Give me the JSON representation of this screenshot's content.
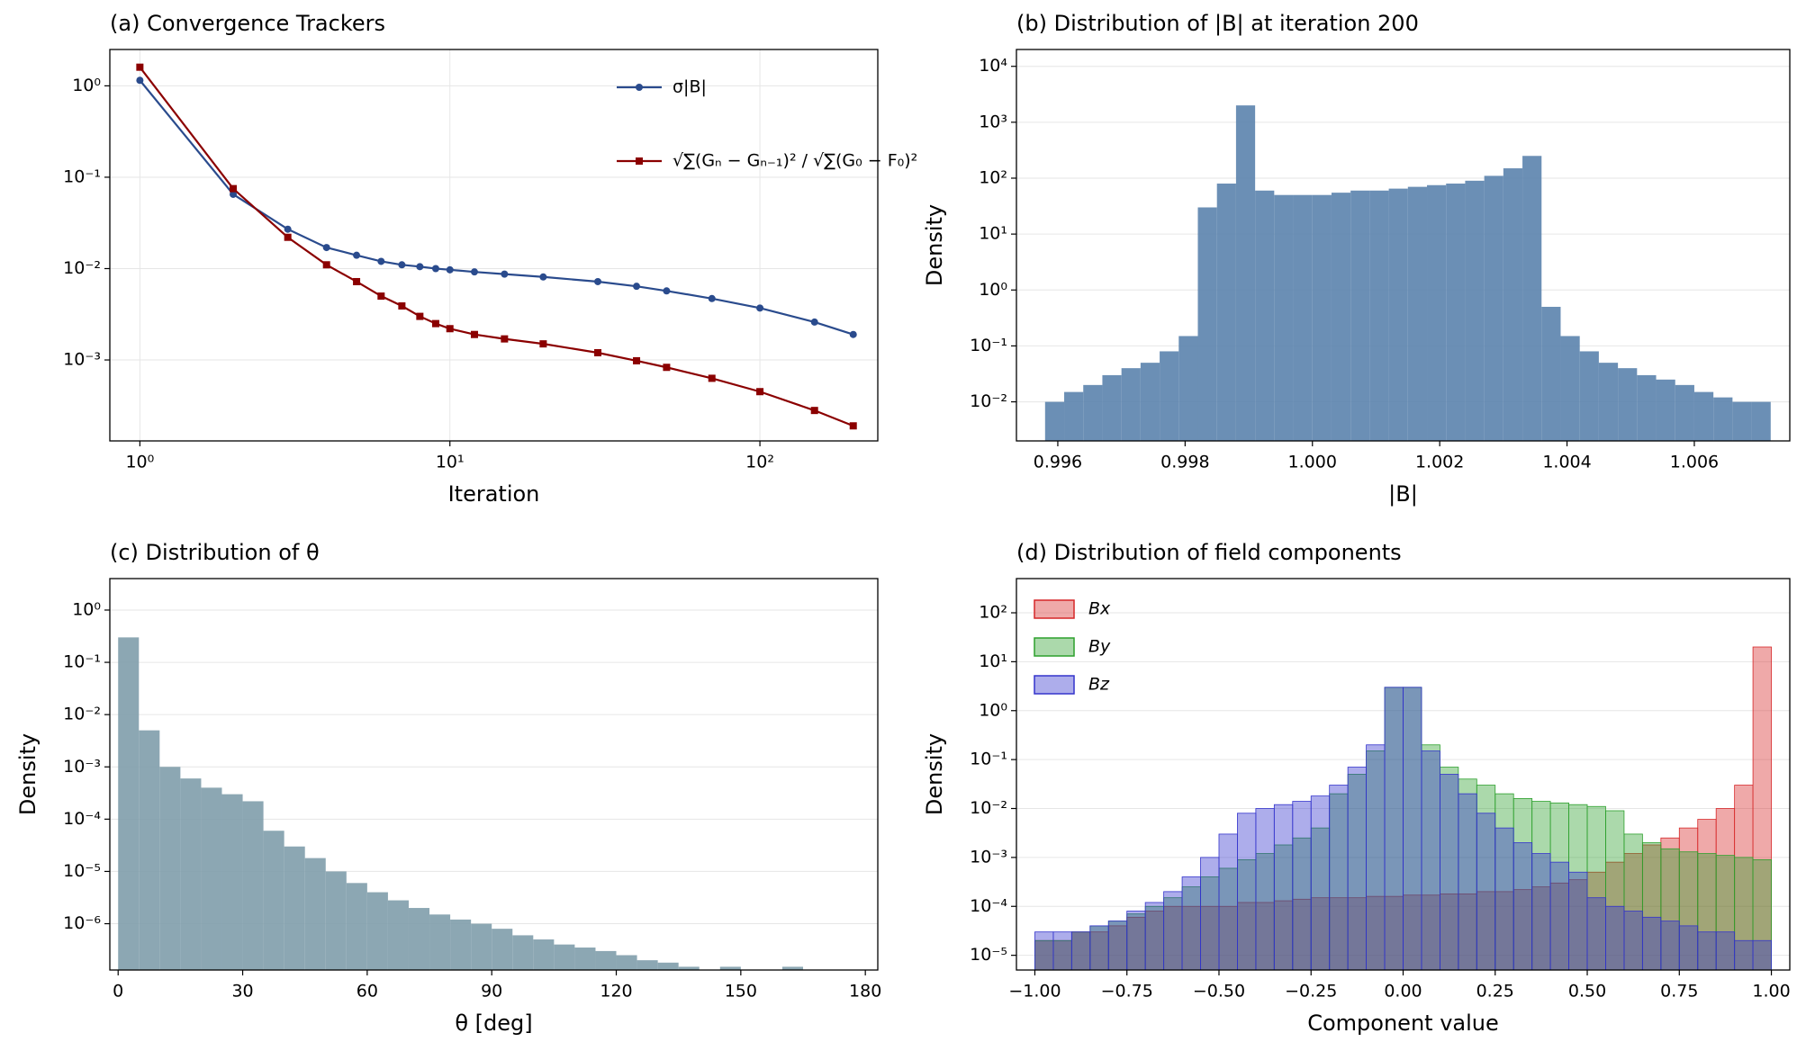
{
  "chart_data": [
    {
      "type": "line",
      "title": "(a) Convergence Trackers",
      "xlabel": "Iteration",
      "xscale": "log",
      "yscale": "log",
      "grid": true,
      "legend": "upper right",
      "x": [
        1,
        2,
        3,
        4,
        5,
        6,
        7,
        8,
        9,
        10,
        12,
        15,
        20,
        30,
        40,
        50,
        70,
        100,
        150,
        200
      ],
      "series": [
        {
          "name": "σ|B|",
          "color": "#2a4b8d",
          "marker": "circle",
          "values": [
            1.15,
            0.065,
            0.027,
            0.017,
            0.014,
            0.012,
            0.011,
            0.0105,
            0.01,
            0.0097,
            0.0092,
            0.0087,
            0.0081,
            0.0072,
            0.0064,
            0.0057,
            0.0047,
            0.0037,
            0.0026,
            0.0019
          ]
        },
        {
          "name": "√∑(Gₙ − Gₙ₋₁)² / √∑(G₀ − F₀)²",
          "color": "#8b0000",
          "marker": "square",
          "values": [
            1.6,
            0.075,
            0.022,
            0.011,
            0.0072,
            0.005,
            0.0039,
            0.003,
            0.0025,
            0.0022,
            0.0019,
            0.0017,
            0.0015,
            0.0012,
            0.00098,
            0.00083,
            0.00063,
            0.00045,
            0.00028,
            0.00019
          ]
        }
      ],
      "xlim": [
        0.8,
        240
      ],
      "xticks": [
        {
          "value": 1,
          "label": "10⁰"
        },
        {
          "value": 10,
          "label": "10¹"
        },
        {
          "value": 100,
          "label": "10²"
        }
      ],
      "ylim": [
        0.00013,
        2.5
      ],
      "yticks": [
        {
          "value": 0.001,
          "label": "10⁻³"
        },
        {
          "value": 0.01,
          "label": "10⁻²"
        },
        {
          "value": 0.1,
          "label": "10⁻¹"
        },
        {
          "value": 1,
          "label": "10⁰"
        }
      ]
    },
    {
      "type": "histogram",
      "title": "(b) Distribution of |B| at iteration 200",
      "xlabel": "|B|",
      "ylabel": "Density",
      "yscale": "log",
      "grid": true,
      "color": "#5b83ad",
      "alpha": 0.9,
      "bins": [
        0.9958,
        0.9961,
        0.9964,
        0.9967,
        0.997,
        0.9973,
        0.9976,
        0.9979,
        0.9982,
        0.9985,
        0.9988,
        0.9991,
        0.9994,
        0.9997,
        1.0,
        1.0003,
        1.0006,
        1.0009,
        1.0012,
        1.0015,
        1.0018,
        1.0021,
        1.0024,
        1.0027,
        1.003,
        1.0033,
        1.0036,
        1.0039,
        1.0042,
        1.0045,
        1.0048,
        1.0051,
        1.0054,
        1.0057,
        1.006,
        1.0063,
        1.0066,
        1.0069,
        1.0072
      ],
      "values": [
        0.01,
        0.015,
        0.02,
        0.03,
        0.04,
        0.05,
        0.08,
        0.15,
        30,
        80,
        2000,
        60,
        50,
        50,
        50,
        55,
        60,
        60,
        65,
        70,
        75,
        80,
        90,
        110,
        150,
        250,
        0.5,
        0.15,
        0.08,
        0.05,
        0.04,
        0.03,
        0.025,
        0.02,
        0.015,
        0.012,
        0.01,
        0.01
      ],
      "xlim": [
        0.99535,
        1.0075
      ],
      "xticks": [
        {
          "value": 0.996,
          "label": "0.996"
        },
        {
          "value": 0.998,
          "label": "0.998"
        },
        {
          "value": 1.0,
          "label": "1.000"
        },
        {
          "value": 1.002,
          "label": "1.002"
        },
        {
          "value": 1.004,
          "label": "1.004"
        },
        {
          "value": 1.006,
          "label": "1.006"
        }
      ],
      "ylim": [
        0.002,
        20000
      ],
      "yticks": [
        {
          "value": 0.01,
          "label": "10⁻²"
        },
        {
          "value": 0.1,
          "label": "10⁻¹"
        },
        {
          "value": 1,
          "label": "10⁰"
        },
        {
          "value": 10,
          "label": "10¹"
        },
        {
          "value": 100,
          "label": "10²"
        },
        {
          "value": 1000,
          "label": "10³"
        },
        {
          "value": 10000,
          "label": "10⁴"
        }
      ]
    },
    {
      "type": "histogram",
      "title": "(c) Distribution of θ",
      "xlabel": "θ [deg]",
      "ylabel": "Density",
      "yscale": "log",
      "grid": true,
      "color": "#7f9dab",
      "alpha": 0.9,
      "bins": [
        0,
        5,
        10,
        15,
        20,
        25,
        30,
        35,
        40,
        45,
        50,
        55,
        60,
        65,
        70,
        75,
        80,
        85,
        90,
        95,
        100,
        105,
        110,
        115,
        120,
        125,
        130,
        135,
        140,
        145,
        150,
        155,
        160,
        165,
        170,
        175
      ],
      "values": [
        0.3,
        0.005,
        0.001,
        0.0006,
        0.0004,
        0.0003,
        0.00022,
        6e-05,
        3e-05,
        1.8e-05,
        1e-05,
        6e-06,
        4e-06,
        2.8e-06,
        2e-06,
        1.5e-06,
        1.2e-06,
        1e-06,
        8e-07,
        6e-07,
        5e-07,
        4e-07,
        3.5e-07,
        3e-07,
        2.5e-07,
        2e-07,
        1.8e-07,
        1.5e-07,
        0,
        1.5e-07,
        0,
        0,
        1.5e-07,
        0,
        0
      ],
      "xlim": [
        -2,
        183
      ],
      "xticks": [
        0,
        30,
        60,
        90,
        120,
        150,
        180
      ],
      "ylim": [
        1.3e-07,
        4
      ],
      "yticks": [
        {
          "value": 1e-06,
          "label": "10⁻⁶"
        },
        {
          "value": 1e-05,
          "label": "10⁻⁵"
        },
        {
          "value": 0.0001,
          "label": "10⁻⁴"
        },
        {
          "value": 0.001,
          "label": "10⁻³"
        },
        {
          "value": 0.01,
          "label": "10⁻²"
        },
        {
          "value": 0.1,
          "label": "10⁻¹"
        },
        {
          "value": 1,
          "label": "10⁰"
        }
      ]
    },
    {
      "type": "histogram",
      "title": "(d) Distribution of field components",
      "xlabel": "Component value",
      "ylabel": "Density",
      "yscale": "log",
      "grid": true,
      "alpha": 0.4,
      "legend": "upper left",
      "bins": [
        -1,
        -0.95,
        -0.9,
        -0.85,
        -0.8,
        -0.75,
        -0.7,
        -0.65,
        -0.6,
        -0.55,
        -0.5,
        -0.45,
        -0.4,
        -0.35,
        -0.3,
        -0.25,
        -0.2,
        -0.15,
        -0.1,
        -0.05,
        0,
        0.05,
        0.1,
        0.15,
        0.2,
        0.25,
        0.3,
        0.35,
        0.4,
        0.45,
        0.5,
        0.55,
        0.6,
        0.65,
        0.7,
        0.75,
        0.8,
        0.85,
        0.9,
        0.95,
        1
      ],
      "series": [
        {
          "name": "Bx",
          "color": "#d62728",
          "values": [
            2e-05,
            2e-05,
            3e-05,
            3e-05,
            4e-05,
            6e-05,
            8e-05,
            0.0001,
            0.0001,
            0.0001,
            0.0001,
            0.00012,
            0.00012,
            0.00013,
            0.00014,
            0.00015,
            0.00015,
            0.00015,
            0.00016,
            0.00016,
            0.00017,
            0.00017,
            0.00018,
            0.00018,
            0.0002,
            0.0002,
            0.00022,
            0.00025,
            0.0003,
            0.00035,
            0.0005,
            0.0008,
            0.0012,
            0.0018,
            0.0025,
            0.004,
            0.006,
            0.01,
            0.03,
            20
          ]
        },
        {
          "name": "By",
          "color": "#2ca02c",
          "values": [
            2e-05,
            2e-05,
            3e-05,
            4e-05,
            5e-05,
            7e-05,
            0.0001,
            0.00015,
            0.00025,
            0.0004,
            0.0006,
            0.0009,
            0.0012,
            0.0018,
            0.0025,
            0.004,
            0.02,
            0.05,
            0.15,
            3,
            3,
            0.2,
            0.07,
            0.04,
            0.03,
            0.02,
            0.016,
            0.014,
            0.013,
            0.012,
            0.011,
            0.009,
            0.003,
            0.002,
            0.0015,
            0.0013,
            0.0012,
            0.0011,
            0.001,
            0.0009
          ]
        },
        {
          "name": "Bz",
          "color": "#3333cc",
          "values": [
            3e-05,
            3e-05,
            3e-05,
            4e-05,
            5e-05,
            8e-05,
            0.00012,
            0.0002,
            0.0004,
            0.001,
            0.003,
            0.008,
            0.01,
            0.012,
            0.014,
            0.018,
            0.03,
            0.07,
            0.2,
            3,
            3,
            0.15,
            0.05,
            0.02,
            0.008,
            0.004,
            0.002,
            0.0012,
            0.0008,
            0.0005,
            0.00015,
            0.0001,
            8e-05,
            6e-05,
            5e-05,
            4e-05,
            3e-05,
            3e-05,
            2e-05,
            2e-05
          ]
        }
      ],
      "xlim": [
        -1.05,
        1.05
      ],
      "xticks": [
        {
          "value": -1,
          "label": "−1.00"
        },
        {
          "value": -0.75,
          "label": "−0.75"
        },
        {
          "value": -0.5,
          "label": "−0.50"
        },
        {
          "value": -0.25,
          "label": "−0.25"
        },
        {
          "value": 0,
          "label": "0.00"
        },
        {
          "value": 0.25,
          "label": "0.25"
        },
        {
          "value": 0.5,
          "label": "0.50"
        },
        {
          "value": 0.75,
          "label": "0.75"
        },
        {
          "value": 1,
          "label": "1.00"
        }
      ],
      "ylim": [
        5e-06,
        500
      ],
      "yticks": [
        {
          "value": 1e-05,
          "label": "10⁻⁵"
        },
        {
          "value": 0.0001,
          "label": "10⁻⁴"
        },
        {
          "value": 0.001,
          "label": "10⁻³"
        },
        {
          "value": 0.01,
          "label": "10⁻²"
        },
        {
          "value": 0.1,
          "label": "10⁻¹"
        },
        {
          "value": 1,
          "label": "10⁰"
        },
        {
          "value": 10,
          "label": "10¹"
        },
        {
          "value": 100,
          "label": "10²"
        }
      ]
    }
  ]
}
